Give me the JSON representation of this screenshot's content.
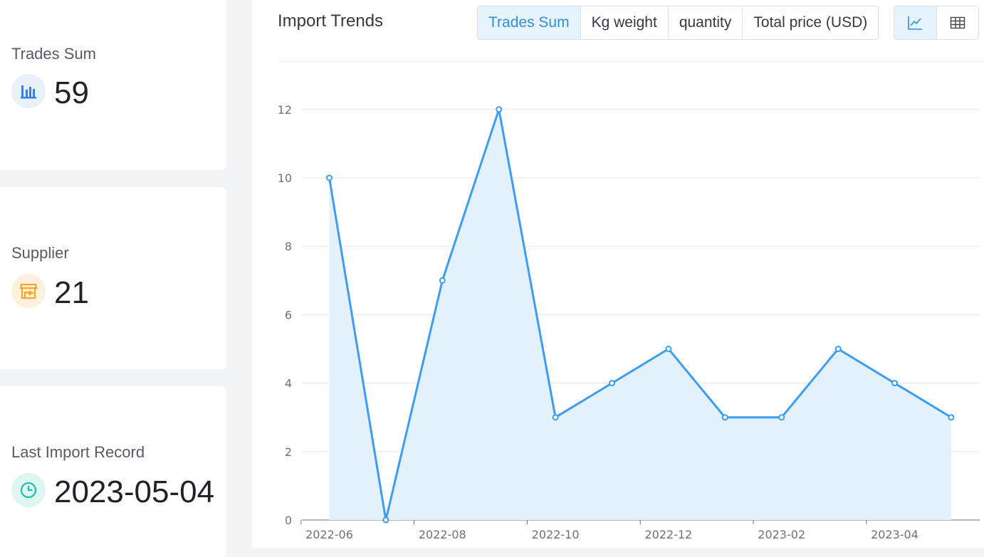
{
  "summary": {
    "trades": {
      "label": "Trades Sum",
      "value": "59",
      "icon": "bar-chart-icon",
      "color": "#3c7fd6"
    },
    "supplier": {
      "label": "Supplier",
      "value": "21",
      "icon": "store-icon",
      "color": "#f5a623"
    },
    "last_import": {
      "label": "Last Import Record",
      "value": "2023-05-04",
      "icon": "clock-icon",
      "color": "#1fbfa9"
    }
  },
  "panel": {
    "title": "Import Trends",
    "metric_tabs": [
      "Trades Sum",
      "Kg weight",
      "quantity",
      "Total price (USD)"
    ],
    "active_metric": "Trades Sum",
    "view_toggle": {
      "active": "line-chart",
      "options": [
        "line-chart-icon",
        "table-icon"
      ]
    }
  },
  "chart_data": {
    "type": "area",
    "x": [
      "2022-06",
      "2022-07",
      "2022-08",
      "2022-09",
      "2022-10",
      "2022-11",
      "2022-12",
      "2023-01",
      "2023-02",
      "2023-03",
      "2023-04",
      "2023-05"
    ],
    "x_tick_labels": [
      "2022-06",
      "2022-08",
      "2022-10",
      "2022-12",
      "2023-02",
      "2023-04"
    ],
    "series": [
      {
        "values": [
          10,
          0,
          7,
          12,
          3,
          4,
          5,
          3,
          3,
          5,
          4,
          3
        ]
      }
    ],
    "yticks": [
      0,
      2,
      4,
      6,
      8,
      10,
      12
    ],
    "ylim": [
      0,
      13
    ],
    "grid": true,
    "line_color": "#3d9df2",
    "fill_color": "#e3f1fd"
  }
}
